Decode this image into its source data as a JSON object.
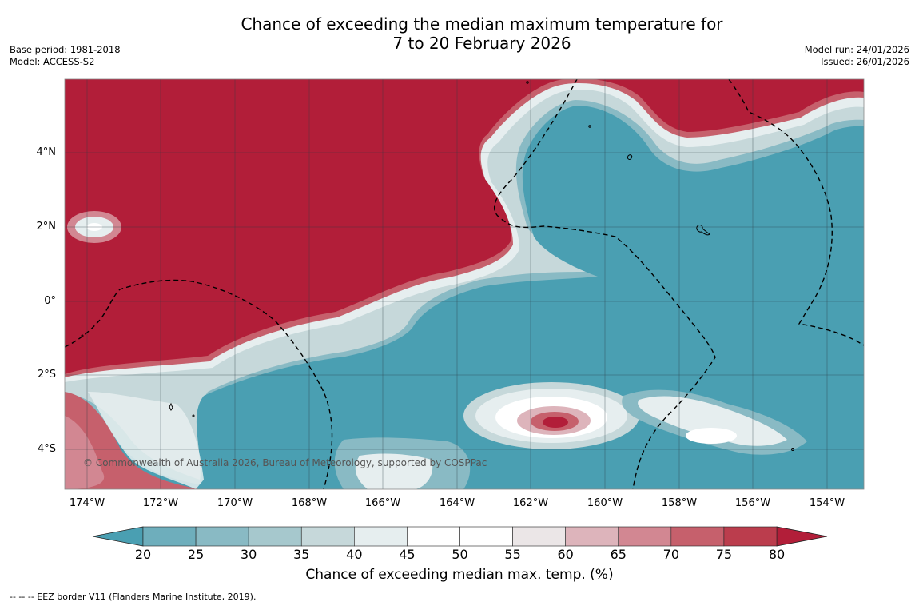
{
  "header": {
    "title_line1": "Chance of exceeding the median maximum temperature for",
    "title_line2": "7 to 20 February 2026",
    "base_period": "Base period: 1981-2018",
    "model": "Model: ACCESS-S2",
    "model_run": "Model run: 24/01/2026",
    "issued": "Issued: 26/01/2026"
  },
  "map": {
    "copyright": "© Commonwealth of Australia 2026, Bureau of Meteorology, supported by COSPPac",
    "lat_labels": [
      "4°N",
      "2°N",
      "0°",
      "2°S",
      "4°S"
    ],
    "lon_labels": [
      "174°W",
      "172°W",
      "170°W",
      "168°W",
      "166°W",
      "164°W",
      "162°W",
      "160°W",
      "158°W",
      "156°W",
      "154°W"
    ],
    "colors": {
      "high": "#b21e39",
      "low": "#4a9fb2"
    }
  },
  "colorbar": {
    "ticks": [
      "20",
      "25",
      "30",
      "35",
      "40",
      "45",
      "50",
      "55",
      "60",
      "65",
      "70",
      "75",
      "80"
    ],
    "colors": [
      "#4a9fb2",
      "#6eaebc",
      "#89bac4",
      "#a6c8cd",
      "#c6d8da",
      "#e6eeef",
      "#ffffff",
      "#ffffff",
      "#ebe6e7",
      "#ddb4bb",
      "#d28792",
      "#c6606c",
      "#bb3d4d",
      "#b21e39"
    ],
    "label": "Chance of exceeding median max. temp. (%)"
  },
  "footnote": "--  --  -- EEZ border V11 (Flanders Marine Institute, 2019)."
}
